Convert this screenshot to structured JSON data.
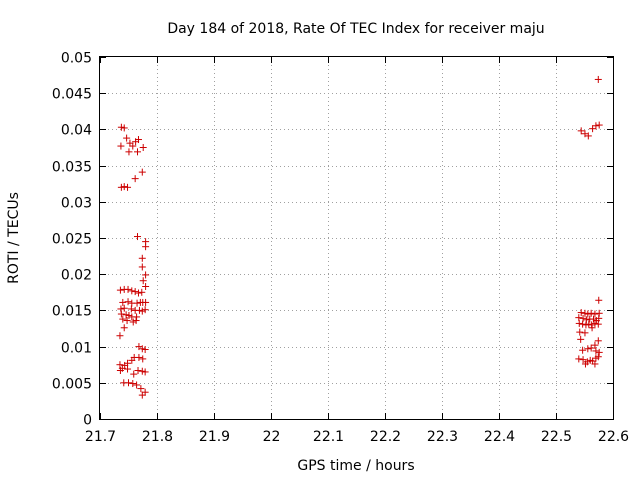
{
  "chart_data": {
    "type": "scatter",
    "title": "Day 184 of 2018, Rate Of TEC Index for receiver maju",
    "xlabel": "GPS time / hours",
    "ylabel": "ROTI / TECUs",
    "xlim": [
      21.7,
      22.6
    ],
    "ylim": [
      0,
      0.05
    ],
    "x_ticks": [
      "21.7",
      "21.8",
      "21.9",
      "22",
      "22.1",
      "22.2",
      "22.3",
      "22.4",
      "22.5",
      "22.6"
    ],
    "y_ticks": [
      "0",
      "0.005",
      "0.01",
      "0.015",
      "0.02",
      "0.025",
      "0.03",
      "0.035",
      "0.04",
      "0.045",
      "0.05"
    ],
    "grid": true,
    "marker": "+",
    "color": "#cc0000",
    "series": [
      {
        "name": "ROTI",
        "points": [
          [
            21.7375,
            0.0403
          ],
          [
            21.7425,
            0.0402
          ],
          [
            21.7367,
            0.0377
          ],
          [
            21.7467,
            0.0388
          ],
          [
            21.7525,
            0.0381
          ],
          [
            21.7575,
            0.0377
          ],
          [
            21.7625,
            0.0383
          ],
          [
            21.7675,
            0.0386
          ],
          [
            21.7758,
            0.0375
          ],
          [
            21.7508,
            0.0369
          ],
          [
            21.7658,
            0.0369
          ],
          [
            21.7617,
            0.0332
          ],
          [
            21.7742,
            0.0341
          ],
          [
            21.7375,
            0.032
          ],
          [
            21.7425,
            0.0321
          ],
          [
            21.7483,
            0.032
          ],
          [
            21.7658,
            0.0252
          ],
          [
            21.78,
            0.0245
          ],
          [
            21.78,
            0.0238
          ],
          [
            21.7742,
            0.0222
          ],
          [
            21.7742,
            0.021
          ],
          [
            21.78,
            0.0199
          ],
          [
            21.7758,
            0.0191
          ],
          [
            21.78,
            0.0183
          ],
          [
            21.7358,
            0.0178
          ],
          [
            21.7425,
            0.0179
          ],
          [
            21.7492,
            0.0179
          ],
          [
            21.7558,
            0.0177
          ],
          [
            21.7617,
            0.0176
          ],
          [
            21.7675,
            0.0174
          ],
          [
            21.7733,
            0.0175
          ],
          [
            21.74,
            0.0161
          ],
          [
            21.7492,
            0.0162
          ],
          [
            21.7558,
            0.016
          ],
          [
            21.765,
            0.016
          ],
          [
            21.7708,
            0.0161
          ],
          [
            21.775,
            0.0161
          ],
          [
            21.78,
            0.0161
          ],
          [
            21.7367,
            0.0152
          ],
          [
            21.7425,
            0.0153
          ],
          [
            21.755,
            0.0152
          ],
          [
            21.7617,
            0.015
          ],
          [
            21.7692,
            0.015
          ],
          [
            21.7742,
            0.0149
          ],
          [
            21.7792,
            0.0151
          ],
          [
            21.7375,
            0.0145
          ],
          [
            21.7458,
            0.0144
          ],
          [
            21.7508,
            0.0143
          ],
          [
            21.7558,
            0.0141
          ],
          [
            21.7642,
            0.0141
          ],
          [
            21.74,
            0.0138
          ],
          [
            21.7475,
            0.0136
          ],
          [
            21.7583,
            0.0134
          ],
          [
            21.7633,
            0.0136
          ],
          [
            21.7425,
            0.0126
          ],
          [
            21.735,
            0.0115
          ],
          [
            21.7683,
            0.01
          ],
          [
            21.7742,
            0.0097
          ],
          [
            21.7792,
            0.0096
          ],
          [
            21.76,
            0.0085
          ],
          [
            21.7683,
            0.0085
          ],
          [
            21.775,
            0.0083
          ],
          [
            21.7558,
            0.0081
          ],
          [
            21.735,
            0.0075
          ],
          [
            21.7433,
            0.0074
          ],
          [
            21.7483,
            0.0077
          ],
          [
            21.7392,
            0.007
          ],
          [
            21.7483,
            0.0069
          ],
          [
            21.7358,
            0.0067
          ],
          [
            21.7667,
            0.0067
          ],
          [
            21.7742,
            0.0066
          ],
          [
            21.7792,
            0.0065
          ],
          [
            21.7592,
            0.0062
          ],
          [
            21.7417,
            0.005
          ],
          [
            21.75,
            0.005
          ],
          [
            21.7575,
            0.0049
          ],
          [
            21.7642,
            0.0047
          ],
          [
            21.7717,
            0.0042
          ],
          [
            21.7792,
            0.0037
          ],
          [
            21.7742,
            0.0033
          ],
          [
            22.5742,
            0.0469
          ],
          [
            22.57,
            0.0405
          ],
          [
            22.5642,
            0.0401
          ],
          [
            22.5758,
            0.0406
          ],
          [
            22.5442,
            0.0398
          ],
          [
            22.5508,
            0.0394
          ],
          [
            22.5567,
            0.0391
          ],
          [
            22.575,
            0.0164
          ],
          [
            22.5442,
            0.0147
          ],
          [
            22.5508,
            0.0146
          ],
          [
            22.5558,
            0.0145
          ],
          [
            22.5617,
            0.0146
          ],
          [
            22.5683,
            0.0145
          ],
          [
            22.5758,
            0.0146
          ],
          [
            22.54,
            0.014
          ],
          [
            22.5475,
            0.0139
          ],
          [
            22.5533,
            0.0137
          ],
          [
            22.5592,
            0.0138
          ],
          [
            22.5658,
            0.0138
          ],
          [
            22.5708,
            0.0136
          ],
          [
            22.575,
            0.0139
          ],
          [
            22.5408,
            0.0132
          ],
          [
            22.5467,
            0.0131
          ],
          [
            22.5525,
            0.013
          ],
          [
            22.5575,
            0.0131
          ],
          [
            22.5625,
            0.013
          ],
          [
            22.5683,
            0.0132
          ],
          [
            22.5742,
            0.0131
          ],
          [
            22.5633,
            0.0126
          ],
          [
            22.5417,
            0.012
          ],
          [
            22.5508,
            0.0119
          ],
          [
            22.5433,
            0.011
          ],
          [
            22.5742,
            0.0108
          ],
          [
            22.5683,
            0.0102
          ],
          [
            22.5617,
            0.0098
          ],
          [
            22.5558,
            0.0097
          ],
          [
            22.5467,
            0.0095
          ],
          [
            22.57,
            0.0094
          ],
          [
            22.5758,
            0.0092
          ],
          [
            22.54,
            0.0083
          ],
          [
            22.5475,
            0.0082
          ],
          [
            22.555,
            0.0079
          ],
          [
            22.56,
            0.0081
          ],
          [
            22.5642,
            0.008
          ],
          [
            22.57,
            0.0084
          ],
          [
            22.5742,
            0.0086
          ],
          [
            22.5517,
            0.0076
          ],
          [
            22.5683,
            0.0076
          ]
        ]
      }
    ]
  }
}
